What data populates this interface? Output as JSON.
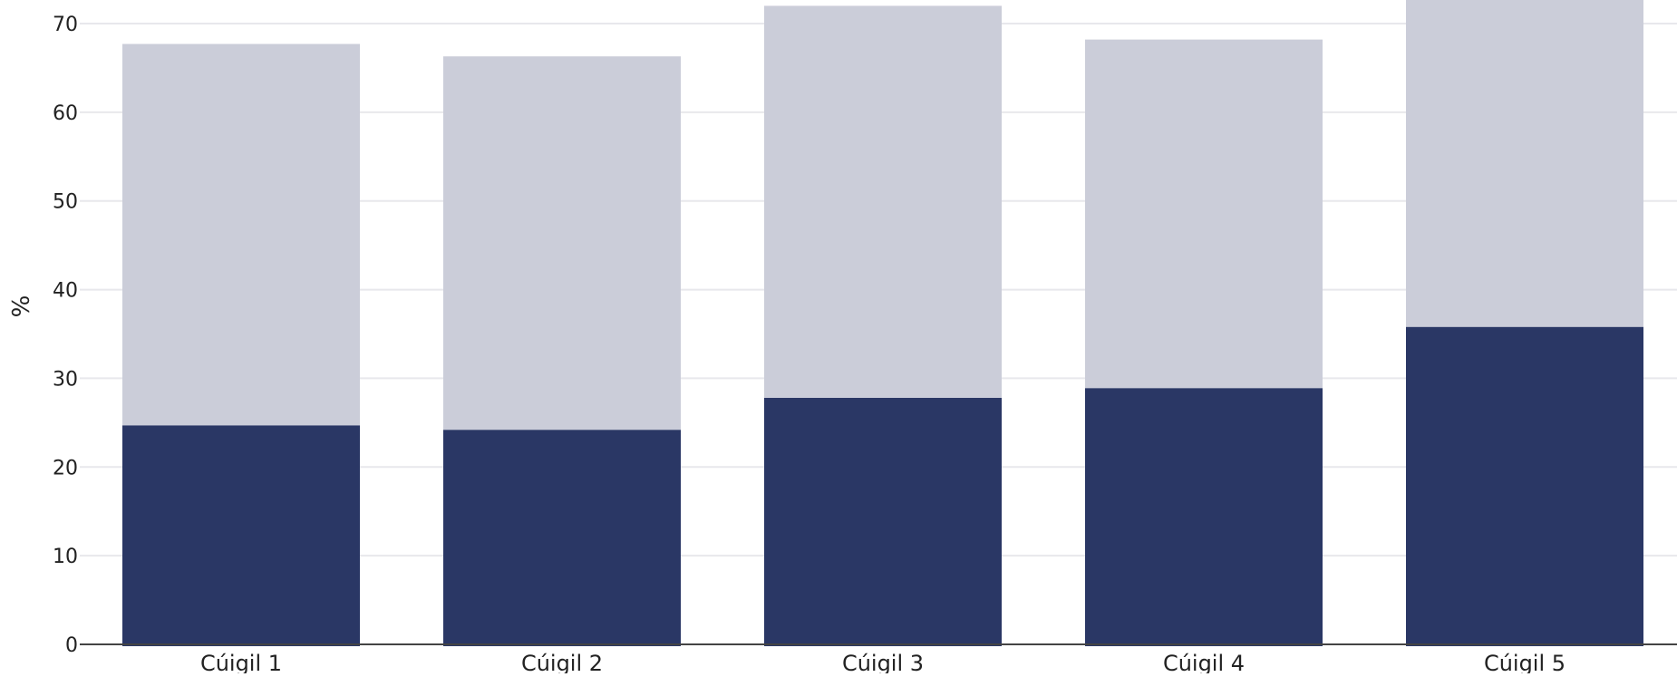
{
  "chart_data": {
    "type": "bar",
    "stacked": true,
    "title": "",
    "xlabel": "",
    "ylabel": "%",
    "ylim": [
      0,
      70
    ],
    "yticks": [
      0,
      10,
      20,
      30,
      40,
      50,
      60,
      70
    ],
    "grid": true,
    "legend": "none",
    "categories": [
      "Cúigil 1",
      "Cúigil 2",
      "Cúigil 3",
      "Cúigil 4",
      "Cúigil 5"
    ],
    "series": [
      {
        "values": [
          24.7,
          24.2,
          27.8,
          28.9,
          35.8
        ],
        "color": "#2a3765"
      },
      {
        "values": [
          43.0,
          42.1,
          44.2,
          39.3,
          37.5
        ],
        "color": "#cbcdd9"
      }
    ]
  }
}
